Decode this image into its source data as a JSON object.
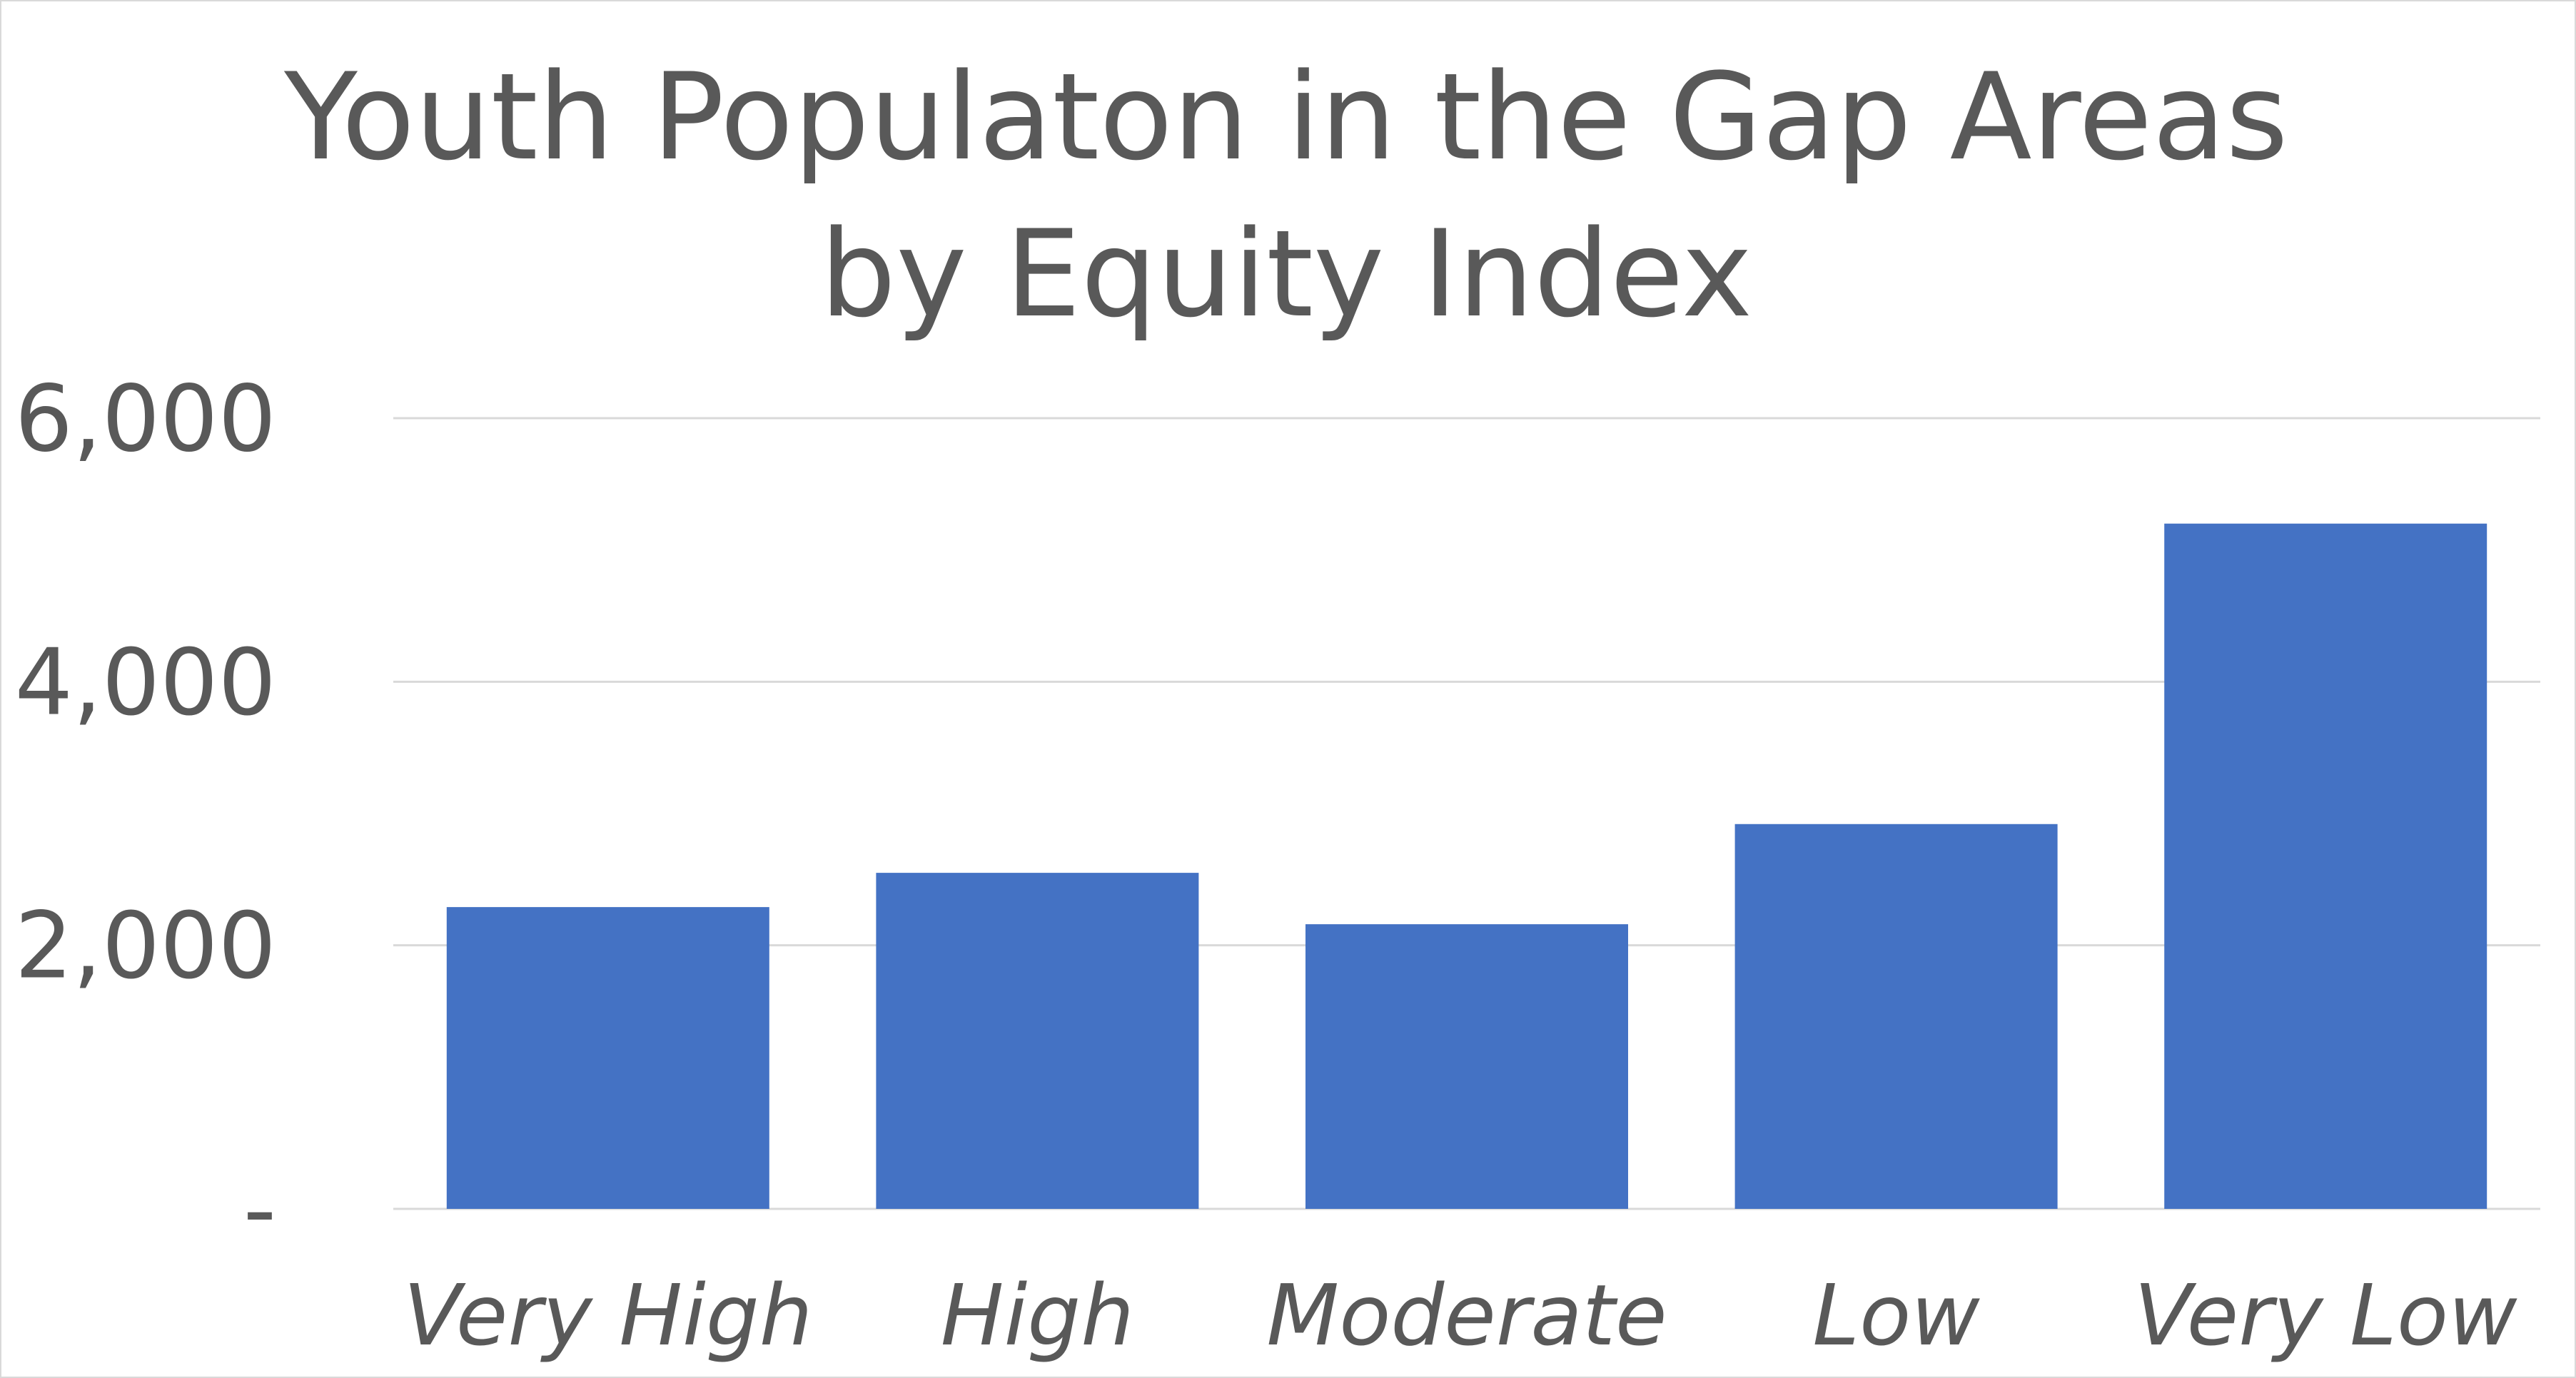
{
  "chart_data": {
    "type": "bar",
    "title": [
      "Youth Populaton in the Gap Areas",
      "by Equity Index"
    ],
    "xlabel": "",
    "ylabel": "",
    "categories": [
      "Very High",
      "High",
      "Moderate",
      "Low",
      "Very Low"
    ],
    "values": [
      2290,
      2550,
      2160,
      2920,
      5200
    ],
    "ylim": [
      0,
      6000
    ],
    "yticks": [
      0,
      2000,
      4000,
      6000
    ],
    "ytick_labels": [
      "-",
      "2,000",
      "4,000",
      "6,000"
    ],
    "grid": true,
    "legend": "none",
    "bar_color": "#4472c4",
    "text_color": "#595959",
    "grid_color": "#d9d9d9"
  }
}
